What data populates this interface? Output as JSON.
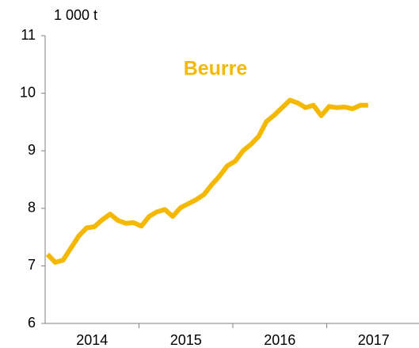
{
  "chart_data": {
    "type": "line",
    "title": "Beurre",
    "y_unit": "1 000 t",
    "year_labels": [
      "2014",
      "2015",
      "2016",
      "2017"
    ],
    "series": [
      {
        "name": "Beurre",
        "color": "#f5b800",
        "values": [
          7.2,
          7.06,
          7.1,
          7.31,
          7.52,
          7.66,
          7.68,
          7.8,
          7.9,
          7.79,
          7.74,
          7.75,
          7.69,
          7.86,
          7.94,
          7.98,
          7.86,
          8.01,
          8.08,
          8.15,
          8.24,
          8.41,
          8.56,
          8.74,
          8.82,
          9.0,
          9.11,
          9.25,
          9.51,
          9.62,
          9.75,
          9.88,
          9.83,
          9.75,
          9.79,
          9.61,
          9.77,
          9.75,
          9.76,
          9.73,
          9.79,
          9.79
        ]
      }
    ],
    "ylim": [
      6,
      11
    ],
    "yticks": [
      6,
      7,
      8,
      9,
      10,
      11
    ],
    "grid": false
  }
}
